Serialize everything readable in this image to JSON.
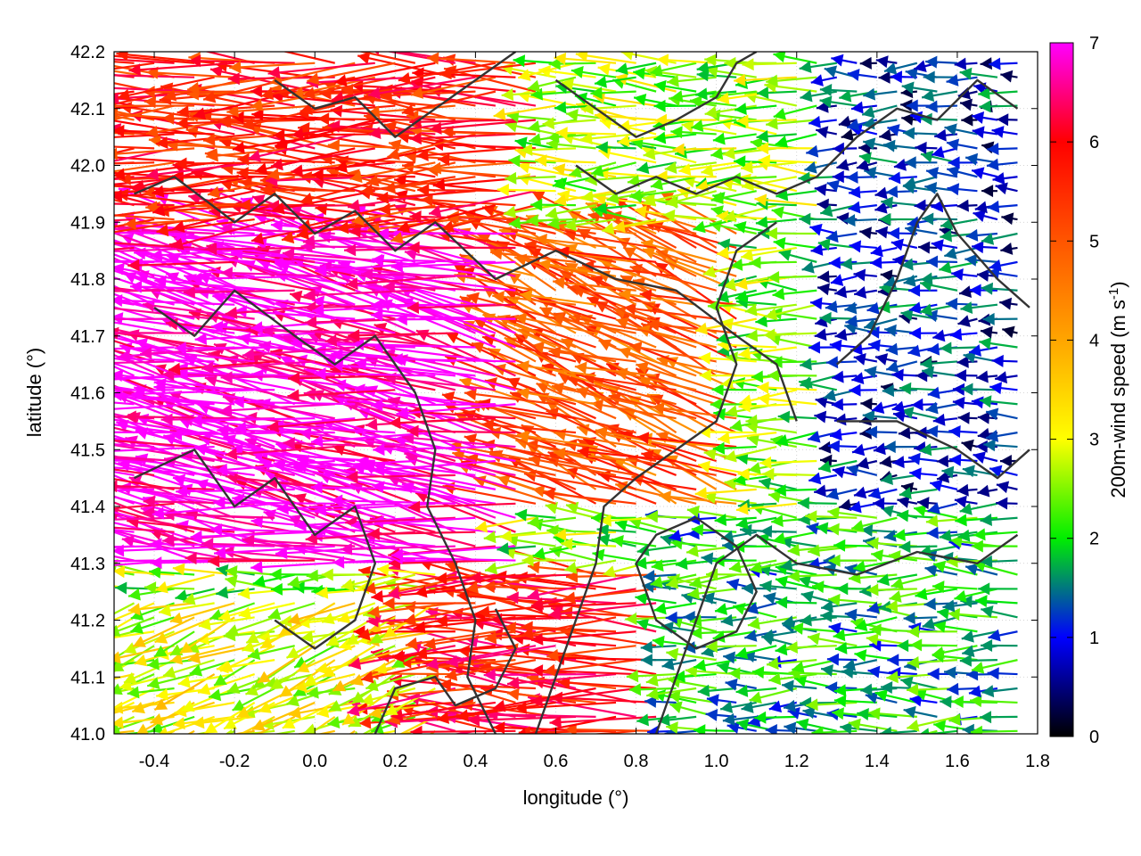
{
  "chart_data": {
    "type": "vector-field",
    "xlabel": "longitude (°)",
    "ylabel": "latitude (°)",
    "colorbar_label_main": "200m-wind speed (m s",
    "colorbar_label_sup": "-1",
    "colorbar_label_close": ")",
    "xlim": [
      -0.5,
      1.8
    ],
    "ylim": [
      41.0,
      42.2
    ],
    "xticks": [
      {
        "v": -0.4,
        "label": "-0.4"
      },
      {
        "v": -0.2,
        "label": "-0.2"
      },
      {
        "v": 0.0,
        "label": "0.0"
      },
      {
        "v": 0.2,
        "label": "0.2"
      },
      {
        "v": 0.4,
        "label": "0.4"
      },
      {
        "v": 0.6,
        "label": "0.6"
      },
      {
        "v": 0.8,
        "label": "0.8"
      },
      {
        "v": 1.0,
        "label": "1.0"
      },
      {
        "v": 1.2,
        "label": "1.2"
      },
      {
        "v": 1.4,
        "label": "1.4"
      },
      {
        "v": 1.6,
        "label": "1.6"
      },
      {
        "v": 1.8,
        "label": "1.8"
      }
    ],
    "yticks": [
      {
        "v": 41.0,
        "label": "41.0"
      },
      {
        "v": 41.1,
        "label": "41.1"
      },
      {
        "v": 41.2,
        "label": "41.2"
      },
      {
        "v": 41.3,
        "label": "41.3"
      },
      {
        "v": 41.4,
        "label": "41.4"
      },
      {
        "v": 41.5,
        "label": "41.5"
      },
      {
        "v": 41.6,
        "label": "41.6"
      },
      {
        "v": 41.7,
        "label": "41.7"
      },
      {
        "v": 41.8,
        "label": "41.8"
      },
      {
        "v": 41.9,
        "label": "41.9"
      },
      {
        "v": 42.0,
        "label": "42.0"
      },
      {
        "v": 42.1,
        "label": "42.1"
      },
      {
        "v": 42.2,
        "label": "42.2"
      }
    ],
    "colorbar": {
      "range": [
        0,
        7
      ],
      "ticks": [
        {
          "v": 0,
          "label": "0"
        },
        {
          "v": 1,
          "label": "1"
        },
        {
          "v": 2,
          "label": "2"
        },
        {
          "v": 3,
          "label": "3"
        },
        {
          "v": 4,
          "label": "4"
        },
        {
          "v": 5,
          "label": "5"
        },
        {
          "v": 6,
          "label": "6"
        },
        {
          "v": 7,
          "label": "7"
        }
      ],
      "stops": [
        {
          "v": 0.0,
          "color": "#000000"
        },
        {
          "v": 1.0,
          "color": "#0000ff"
        },
        {
          "v": 2.0,
          "color": "#00ee00"
        },
        {
          "v": 3.0,
          "color": "#ffff00"
        },
        {
          "v": 4.0,
          "color": "#ffa500"
        },
        {
          "v": 5.0,
          "color": "#ff5500"
        },
        {
          "v": 6.0,
          "color": "#ff0000"
        },
        {
          "v": 7.0,
          "color": "#ff00ff"
        }
      ]
    },
    "grid": true,
    "legend": "colorbar-right",
    "field_regions": [
      {
        "xmin": -0.5,
        "xmax": 0.5,
        "ymin": 41.3,
        "ymax": 41.9,
        "speed": 7.0,
        "dir_deg": 170,
        "note": "strong westward flow"
      },
      {
        "xmin": -0.5,
        "xmax": 0.6,
        "ymin": 41.9,
        "ymax": 42.2,
        "speed": 5.6,
        "dir_deg": 180
      },
      {
        "xmin": 0.4,
        "xmax": 1.1,
        "ymin": 41.4,
        "ymax": 41.9,
        "speed": 5.0,
        "dir_deg": 160
      },
      {
        "xmin": 0.6,
        "xmax": 1.3,
        "ymin": 41.9,
        "ymax": 42.2,
        "speed": 2.6,
        "dir_deg": 180
      },
      {
        "xmin": 1.3,
        "xmax": 1.8,
        "ymin": 41.4,
        "ymax": 42.2,
        "speed": 1.0,
        "dir_deg": 180
      },
      {
        "xmin": 0.9,
        "xmax": 1.8,
        "ymin": 41.0,
        "ymax": 41.4,
        "speed": 1.8,
        "dir_deg": 180
      },
      {
        "xmin": -0.5,
        "xmax": 0.3,
        "ymin": 41.0,
        "ymax": 41.25,
        "speed": 3.0,
        "dir_deg": 200
      },
      {
        "xmin": 0.3,
        "xmax": 0.9,
        "ymin": 41.0,
        "ymax": 41.3,
        "speed": 5.8,
        "dir_deg": 178
      }
    ],
    "contour_paths": [
      [
        [
          -0.45,
          41.95
        ],
        [
          -0.35,
          41.98
        ],
        [
          -0.2,
          41.9
        ],
        [
          -0.1,
          41.95
        ],
        [
          0.0,
          41.88
        ],
        [
          0.1,
          41.92
        ],
        [
          0.2,
          41.85
        ],
        [
          0.3,
          41.9
        ],
        [
          0.45,
          41.8
        ],
        [
          0.6,
          41.85
        ],
        [
          0.75,
          41.8
        ],
        [
          0.9,
          41.78
        ],
        [
          1.05,
          41.7
        ],
        [
          1.15,
          41.65
        ],
        [
          1.2,
          41.55
        ]
      ],
      [
        [
          -0.4,
          41.75
        ],
        [
          -0.3,
          41.7
        ],
        [
          -0.2,
          41.78
        ],
        [
          -0.05,
          41.7
        ],
        [
          0.05,
          41.65
        ],
        [
          0.15,
          41.7
        ],
        [
          0.25,
          41.6
        ],
        [
          0.3,
          41.5
        ],
        [
          0.28,
          41.4
        ],
        [
          0.35,
          41.3
        ],
        [
          0.4,
          41.2
        ],
        [
          0.38,
          41.1
        ],
        [
          0.45,
          41.0
        ]
      ],
      [
        [
          -0.45,
          41.45
        ],
        [
          -0.3,
          41.5
        ],
        [
          -0.2,
          41.4
        ],
        [
          -0.1,
          41.45
        ],
        [
          0.0,
          41.35
        ],
        [
          0.1,
          41.4
        ],
        [
          0.15,
          41.3
        ],
        [
          0.1,
          41.2
        ],
        [
          0.0,
          41.15
        ],
        [
          -0.1,
          41.2
        ]
      ],
      [
        [
          0.55,
          41.0
        ],
        [
          0.6,
          41.1
        ],
        [
          0.65,
          41.2
        ],
        [
          0.7,
          41.3
        ],
        [
          0.72,
          41.4
        ],
        [
          0.8,
          41.45
        ],
        [
          0.9,
          41.5
        ],
        [
          1.0,
          41.55
        ],
        [
          1.05,
          41.65
        ],
        [
          1.0,
          41.75
        ],
        [
          1.05,
          41.85
        ],
        [
          1.15,
          41.9
        ]
      ],
      [
        [
          0.85,
          41.0
        ],
        [
          0.9,
          41.1
        ],
        [
          0.95,
          41.2
        ],
        [
          1.0,
          41.3
        ],
        [
          1.1,
          41.35
        ],
        [
          1.2,
          41.3
        ],
        [
          1.35,
          41.28
        ],
        [
          1.5,
          41.32
        ],
        [
          1.65,
          41.3
        ],
        [
          1.75,
          41.35
        ]
      ],
      [
        [
          0.8,
          41.3
        ],
        [
          0.85,
          41.35
        ],
        [
          0.95,
          41.38
        ],
        [
          1.05,
          41.33
        ],
        [
          1.1,
          41.25
        ],
        [
          1.05,
          41.18
        ],
        [
          0.95,
          41.15
        ],
        [
          0.85,
          41.2
        ],
        [
          0.8,
          41.3
        ]
      ],
      [
        [
          0.6,
          42.15
        ],
        [
          0.7,
          42.1
        ],
        [
          0.8,
          42.05
        ],
        [
          0.9,
          42.08
        ],
        [
          1.0,
          42.12
        ],
        [
          1.05,
          42.18
        ],
        [
          1.1,
          42.2
        ]
      ],
      [
        [
          0.65,
          42.0
        ],
        [
          0.75,
          41.95
        ],
        [
          0.85,
          41.98
        ],
        [
          0.95,
          41.95
        ],
        [
          1.05,
          41.98
        ],
        [
          1.15,
          41.95
        ],
        [
          1.25,
          41.98
        ],
        [
          1.35,
          42.05
        ],
        [
          1.45,
          42.1
        ],
        [
          1.55,
          42.08
        ],
        [
          1.65,
          42.15
        ],
        [
          1.75,
          42.1
        ]
      ],
      [
        [
          1.3,
          41.65
        ],
        [
          1.38,
          41.7
        ],
        [
          1.45,
          41.8
        ],
        [
          1.5,
          41.9
        ],
        [
          1.55,
          41.95
        ],
        [
          1.6,
          41.88
        ],
        [
          1.7,
          41.8
        ],
        [
          1.78,
          41.75
        ]
      ],
      [
        [
          1.3,
          41.55
        ],
        [
          1.45,
          41.55
        ],
        [
          1.6,
          41.5
        ],
        [
          1.7,
          41.45
        ],
        [
          1.78,
          41.5
        ]
      ],
      [
        [
          -0.1,
          42.15
        ],
        [
          0.0,
          42.1
        ],
        [
          0.1,
          42.12
        ],
        [
          0.2,
          42.05
        ],
        [
          0.3,
          42.1
        ],
        [
          0.4,
          42.15
        ],
        [
          0.5,
          42.2
        ]
      ],
      [
        [
          0.15,
          41.0
        ],
        [
          0.2,
          41.08
        ],
        [
          0.3,
          41.1
        ],
        [
          0.35,
          41.05
        ],
        [
          0.45,
          41.08
        ],
        [
          0.5,
          41.15
        ],
        [
          0.45,
          41.22
        ]
      ]
    ]
  }
}
